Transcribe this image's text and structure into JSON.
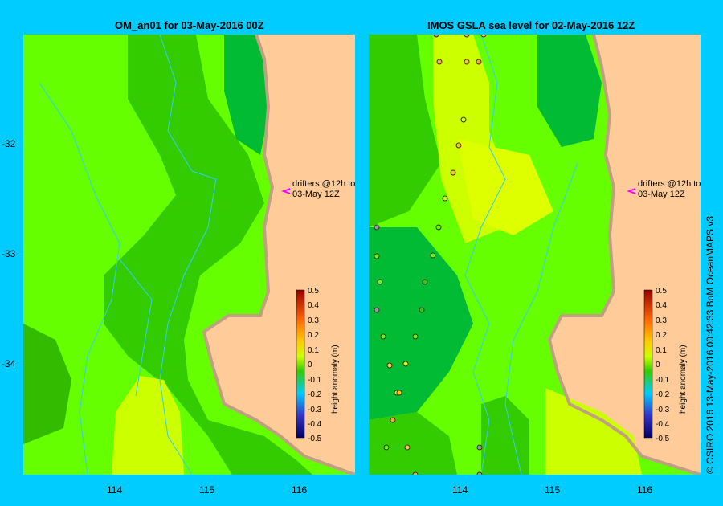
{
  "left_panel": {
    "title": "OM_an01  for 03-May-2016 00Z",
    "drifter_label_1": "drifters @12h to",
    "drifter_label_2": "03-May 12Z"
  },
  "right_panel": {
    "title": "IMOS  GSLA sea level   for 02-May-2016 12Z",
    "drifter_label_1": "drifters @12h to",
    "drifter_label_2": "03-May 12Z"
  },
  "colorbar": {
    "label": "height anomaly (m)",
    "ticks": [
      "0.5",
      "0.4",
      "0.3",
      "0.2",
      "0.1",
      "0",
      "-0.1",
      "-0.2",
      "-0.3",
      "-0.4",
      "-0.5"
    ]
  },
  "y_ticks": [
    "-32",
    "-33",
    "-34"
  ],
  "x_ticks_left": [
    "114",
    "115",
    "116"
  ],
  "x_ticks_right": [
    "114",
    "115",
    "116"
  ],
  "copyright": "© CSIRO 2016   13-May-2016 00:42:33 BoM OceanMAPS v3",
  "colors": {
    "background": "#00ccff",
    "land": "#ffcc99",
    "coast": "#c0a080",
    "contour": "#33ccff",
    "drifter_arrow": "#ff00ff"
  }
}
